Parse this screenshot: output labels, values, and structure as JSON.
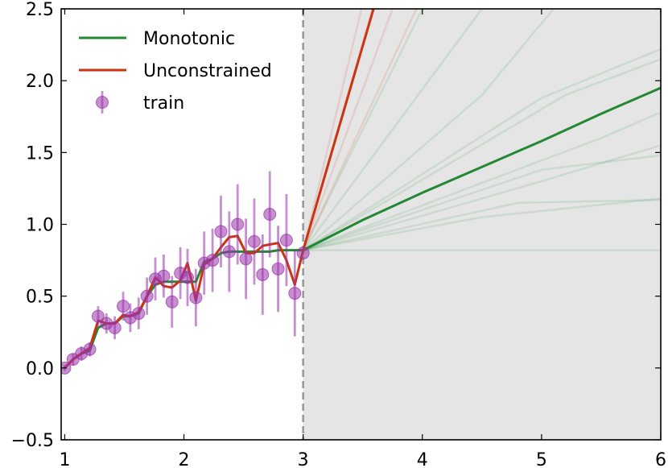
{
  "chart_data": {
    "type": "line",
    "xlim": [
      0.97,
      6
    ],
    "ylim": [
      -0.5,
      2.5
    ],
    "x_ticks": [
      1,
      2,
      3,
      4,
      5,
      6
    ],
    "y_ticks": [
      -0.5,
      0.0,
      0.5,
      1.0,
      1.5,
      2.0,
      2.5
    ],
    "x_tick_labels": [
      "1",
      "2",
      "3",
      "4",
      "5",
      "6"
    ],
    "y_tick_labels": [
      "−0.5",
      "0.0",
      "0.5",
      "1.0",
      "1.5",
      "2.0",
      "2.5"
    ],
    "grid": false,
    "legend_placement": "top-left",
    "boundary_x": 3,
    "shaded_region": {
      "from": 3,
      "to": 6,
      "color": "#e5e5e5"
    },
    "colors": {
      "monotonic": "#228833",
      "unconstrained": "#cc3311",
      "train": "#9933aa",
      "boundary": "#999999"
    },
    "legend": [
      {
        "key": "monotonic",
        "label": "Monotonic",
        "marker": "line"
      },
      {
        "key": "unconstrained",
        "label": "Unconstrained",
        "marker": "line"
      },
      {
        "key": "train",
        "label": "train",
        "marker": "errorbar-point"
      }
    ],
    "train": {
      "x": [
        1.0,
        1.07,
        1.14,
        1.21,
        1.28,
        1.35,
        1.42,
        1.49,
        1.55,
        1.62,
        1.69,
        1.76,
        1.83,
        1.9,
        1.97,
        2.03,
        2.1,
        2.17,
        2.24,
        2.31,
        2.38,
        2.45,
        2.52,
        2.59,
        2.66,
        2.72,
        2.79,
        2.86,
        2.93,
        3.0
      ],
      "y": [
        0.0,
        0.06,
        0.1,
        0.13,
        0.36,
        0.31,
        0.28,
        0.43,
        0.35,
        0.38,
        0.5,
        0.62,
        0.64,
        0.46,
        0.66,
        0.63,
        0.49,
        0.73,
        0.75,
        0.95,
        0.81,
        1.0,
        0.76,
        0.88,
        0.65,
        1.07,
        0.69,
        0.89,
        0.52,
        0.8
      ],
      "err": [
        0.02,
        0.04,
        0.05,
        0.05,
        0.07,
        0.07,
        0.08,
        0.1,
        0.1,
        0.11,
        0.13,
        0.15,
        0.15,
        0.18,
        0.18,
        0.2,
        0.2,
        0.22,
        0.22,
        0.25,
        0.28,
        0.28,
        0.28,
        0.3,
        0.28,
        0.3,
        0.3,
        0.32,
        0.3,
        0.0
      ]
    },
    "series": [
      {
        "key": "monotonic",
        "label": "Monotonic",
        "x": [
          1.0,
          1.07,
          1.14,
          1.21,
          1.28,
          1.35,
          1.42,
          1.49,
          1.55,
          1.62,
          1.69,
          1.76,
          1.83,
          1.9,
          1.97,
          2.03,
          2.1,
          2.17,
          2.24,
          2.31,
          2.38,
          2.45,
          2.52,
          2.59,
          2.66,
          2.72,
          2.79,
          2.86,
          2.93,
          3.0,
          3.5,
          4.0,
          4.5,
          5.0,
          5.5,
          6.0
        ],
        "y": [
          0.0,
          0.06,
          0.1,
          0.12,
          0.28,
          0.31,
          0.31,
          0.36,
          0.36,
          0.38,
          0.5,
          0.58,
          0.6,
          0.6,
          0.6,
          0.6,
          0.6,
          0.74,
          0.76,
          0.8,
          0.81,
          0.81,
          0.81,
          0.81,
          0.81,
          0.81,
          0.82,
          0.82,
          0.82,
          0.82,
          1.03,
          1.22,
          1.4,
          1.58,
          1.77,
          1.95
        ]
      },
      {
        "key": "unconstrained",
        "label": "Unconstrained",
        "x": [
          1.0,
          1.07,
          1.14,
          1.21,
          1.28,
          1.35,
          1.42,
          1.49,
          1.55,
          1.62,
          1.69,
          1.76,
          1.83,
          1.9,
          1.97,
          2.03,
          2.1,
          2.17,
          2.24,
          2.31,
          2.38,
          2.45,
          2.52,
          2.59,
          2.66,
          2.72,
          2.79,
          2.86,
          2.93,
          3.0,
          3.59
        ],
        "y": [
          0.0,
          0.06,
          0.1,
          0.14,
          0.33,
          0.31,
          0.31,
          0.37,
          0.36,
          0.39,
          0.5,
          0.63,
          0.57,
          0.56,
          0.61,
          0.73,
          0.47,
          0.72,
          0.76,
          0.84,
          0.91,
          0.92,
          0.8,
          0.8,
          0.85,
          0.86,
          0.87,
          0.75,
          0.58,
          0.82,
          2.5
        ]
      }
    ],
    "monotonic_samples": [
      {
        "x": [
          3.0,
          6.0
        ],
        "y": [
          0.82,
          0.82
        ]
      },
      {
        "x": [
          3.0,
          4.5,
          6.0
        ],
        "y": [
          0.82,
          1.05,
          1.18
        ]
      },
      {
        "x": [
          3.0,
          4.8,
          6.0
        ],
        "y": [
          0.82,
          1.15,
          1.17
        ]
      },
      {
        "x": [
          3.0,
          5.0,
          6.0
        ],
        "y": [
          0.82,
          1.3,
          1.55
        ]
      },
      {
        "x": [
          3.0,
          5.0,
          6.0
        ],
        "y": [
          0.82,
          1.38,
          1.48
        ]
      },
      {
        "x": [
          3.0,
          5.5,
          6.0
        ],
        "y": [
          0.82,
          1.6,
          1.78
        ]
      },
      {
        "x": [
          3.0,
          5.0,
          6.0
        ],
        "y": [
          0.82,
          1.88,
          2.22
        ]
      },
      {
        "x": [
          3.0,
          5.2,
          6.0
        ],
        "y": [
          0.82,
          1.9,
          2.15
        ]
      },
      {
        "x": [
          3.0,
          4.5,
          5.1
        ],
        "y": [
          0.82,
          1.9,
          2.5
        ]
      },
      {
        "x": [
          3.0,
          4.5
        ],
        "y": [
          0.82,
          2.5
        ]
      },
      {
        "x": [
          3.0,
          4.0
        ],
        "y": [
          0.82,
          2.5
        ]
      }
    ],
    "unconstrained_samples": [
      {
        "x": [
          3.0,
          3.49
        ],
        "y": [
          0.82,
          2.5
        ]
      },
      {
        "x": [
          3.0,
          3.58
        ],
        "y": [
          0.82,
          2.5
        ]
      },
      {
        "x": [
          3.0,
          3.75
        ],
        "y": [
          0.82,
          2.5
        ]
      },
      {
        "x": [
          3.0,
          3.95
        ],
        "y": [
          0.82,
          2.5
        ]
      }
    ]
  }
}
